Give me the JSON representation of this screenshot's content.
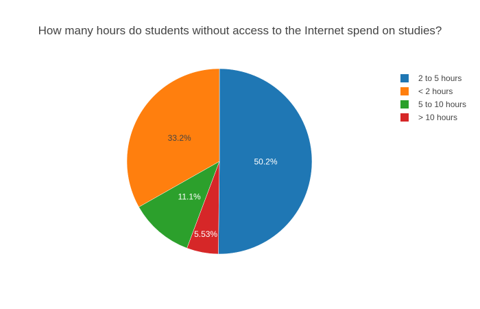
{
  "chart_data": {
    "type": "pie",
    "title": "How many hours do students without access to the Internet spend on studies?",
    "direction": "clockwise",
    "start_angle_deg": 0,
    "legend_position": "top-right",
    "slices": [
      {
        "label": "2 to 5 hours",
        "value": 50.2,
        "text": "50.2%",
        "color": "#1f77b4",
        "text_color": "#ffffff"
      },
      {
        "label": "> 10 hours",
        "value": 5.53,
        "text": "5.53%",
        "color": "#d62728",
        "text_color": "#ffffff"
      },
      {
        "label": "5 to 10 hours",
        "value": 11.1,
        "text": "11.1%",
        "color": "#2ca02c",
        "text_color": "#ffffff"
      },
      {
        "label": "< 2 hours",
        "value": 33.2,
        "text": "33.2%",
        "color": "#ff7f0e",
        "text_color": "#444444"
      }
    ],
    "legend_order": [
      "2 to 5 hours",
      "< 2 hours",
      "5 to 10 hours",
      "> 10 hours"
    ]
  }
}
